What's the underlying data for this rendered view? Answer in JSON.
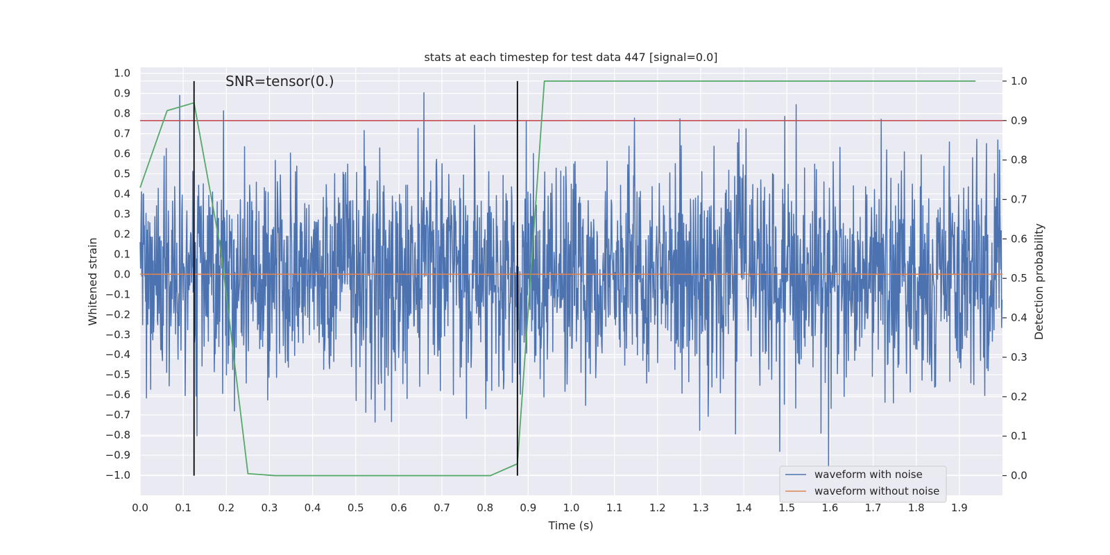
{
  "chart_data": {
    "type": "line",
    "title": "stats at each timestep for test data 447 [signal=0.0]",
    "annotation": "SNR=tensor(0.)",
    "xlabel": "Time (s)",
    "ylabel_left": "Whitened strain",
    "ylabel_right": "Detection probability",
    "xlim": [
      0.0,
      2.0
    ],
    "ylim_left": [
      -1.1,
      1.03
    ],
    "ylim_right": [
      -0.05,
      1.035
    ],
    "x_ticks": [
      0.0,
      0.1,
      0.2,
      0.3,
      0.4,
      0.5,
      0.6,
      0.7,
      0.8,
      0.9,
      1.0,
      1.1,
      1.2,
      1.3,
      1.4,
      1.5,
      1.6,
      1.7,
      1.8,
      1.9
    ],
    "x_tick_labels": [
      "0.0",
      "0.1",
      "0.2",
      "0.3",
      "0.4",
      "0.5",
      "0.6",
      "0.7",
      "0.8",
      "0.9",
      "1.0",
      "1.1",
      "1.2",
      "1.3",
      "1.4",
      "1.5",
      "1.6",
      "1.7",
      "1.8",
      "1.9"
    ],
    "y_left_ticks": [
      1.0,
      0.9,
      0.8,
      0.7,
      0.6,
      0.5,
      0.4,
      0.3,
      0.2,
      0.1,
      0.0,
      -0.1,
      -0.2,
      -0.3,
      -0.4,
      -0.5,
      -0.6,
      -0.7,
      -0.8,
      -0.9,
      -1.0
    ],
    "y_left_tick_labels": [
      "1.0",
      "0.9",
      "0.8",
      "0.7",
      "0.6",
      "0.5",
      "0.4",
      "0.3",
      "0.2",
      "0.1",
      "0.0",
      "−0.1",
      "−0.2",
      "−0.3",
      "−0.4",
      "−0.5",
      "−0.6",
      "−0.7",
      "−0.8",
      "−0.9",
      "−1.0"
    ],
    "y_right_ticks": [
      1.0,
      0.9,
      0.8,
      0.7,
      0.6,
      0.5,
      0.4,
      0.3,
      0.2,
      0.1,
      0.0
    ],
    "y_right_tick_labels": [
      "1.0",
      "0.9",
      "0.8",
      "0.7",
      "0.6",
      "0.5",
      "0.4",
      "0.3",
      "0.2",
      "0.1",
      "0.0"
    ],
    "series": [
      {
        "name": "waveform with noise",
        "axis": "left",
        "color": "#4c72b0",
        "description": "dense noise trace, 2048 samples across 0-2 s, values roughly within -1.0 to 0.94",
        "sample_count": 2048,
        "seed": 447,
        "amplitude_range": [
          -1.0,
          0.94
        ]
      },
      {
        "name": "waveform without noise",
        "axis": "left",
        "color": "#dd8452",
        "x": [
          0.0,
          2.0
        ],
        "y": [
          0.0,
          0.0
        ]
      },
      {
        "name": "detection probability",
        "axis": "right",
        "color": "#55a868",
        "x": [
          0.0,
          0.0625,
          0.125,
          0.1875,
          0.25,
          0.3125,
          0.375,
          0.4375,
          0.5,
          0.5625,
          0.625,
          0.6875,
          0.75,
          0.8125,
          0.875,
          0.9375,
          1.0,
          1.0625,
          1.125,
          1.1875,
          1.25,
          1.3125,
          1.375,
          1.4375,
          1.5,
          1.5625,
          1.625,
          1.6875,
          1.75,
          1.8125,
          1.875,
          1.9375
        ],
        "y": [
          0.73,
          0.925,
          0.945,
          0.57,
          0.005,
          0.0,
          0.0,
          0.0,
          0.0,
          0.0,
          0.0,
          0.0,
          0.0,
          0.0,
          0.03,
          1.0,
          1.0,
          1.0,
          1.0,
          1.0,
          1.0,
          1.0,
          1.0,
          1.0,
          1.0,
          1.0,
          1.0,
          1.0,
          1.0,
          1.0,
          1.0,
          1.0
        ]
      }
    ],
    "threshold": {
      "axis": "right",
      "value": 0.9,
      "color": "#c44e52"
    },
    "vertical_lines": {
      "x": [
        0.125,
        0.875
      ],
      "ymin": 0.0,
      "ymax": 1.0,
      "color": "#000000"
    },
    "legend": {
      "placement": "lower-right",
      "entries": [
        {
          "label": "waveform with noise",
          "color": "#4c72b0"
        },
        {
          "label": "waveform without noise",
          "color": "#dd8452"
        }
      ]
    },
    "colors": {
      "background": "#eaeaf2",
      "grid": "#ffffff"
    }
  }
}
